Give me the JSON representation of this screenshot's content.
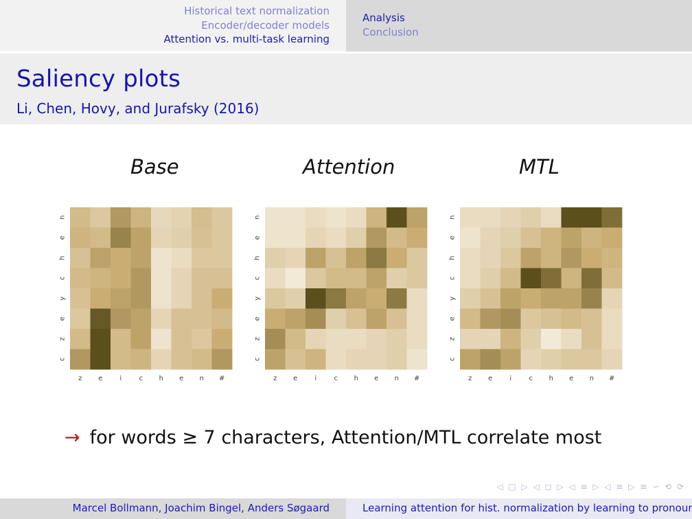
{
  "header": {
    "sections": [
      "Historical text normalization",
      "Encoder/decoder models",
      "Attention vs. multi-task learning"
    ],
    "active_section": 2,
    "subsections": [
      "Analysis",
      "Conclusion"
    ],
    "active_subsection": 0
  },
  "title": "Saliency plots",
  "subtitle": "Li, Chen, Hovy, and Jurafsky (2016)",
  "note": {
    "arrow": "→",
    "text": "for words ≥ 7 characters, Attention/MTL correlate most"
  },
  "navigation": {
    "symbols": "◁ □ ▷ ◁ ◻ ▷ ◁ ≡ ▷ ◁ ≡ ▷ ≡ ∽ ⟲ ⟳"
  },
  "footer": {
    "authors": "Marcel Bollmann, Joachim Bingel, Anders Søgaard",
    "talk_title": "Learning attention for hist. normalization by learning to pronounce"
  },
  "colors": {
    "low": "#f7f0e2",
    "mid": "#c9ad73",
    "high": "#4f4412",
    "title_blue": "#1515b0",
    "arrow_red": "#b22020"
  },
  "chart_data": [
    {
      "type": "heatmap",
      "title": "Base",
      "x": [
        "z",
        "e",
        "i",
        "c",
        "h",
        "e",
        "n",
        "#"
      ],
      "y": [
        "n",
        "e",
        "h",
        "c",
        "y",
        "e",
        "z",
        "c"
      ],
      "values": [
        [
          0.4,
          0.3,
          0.6,
          0.45,
          0.18,
          0.22,
          0.38,
          0.3
        ],
        [
          0.45,
          0.4,
          0.7,
          0.55,
          0.2,
          0.25,
          0.35,
          0.3
        ],
        [
          0.35,
          0.55,
          0.5,
          0.55,
          0.1,
          0.15,
          0.3,
          0.3
        ],
        [
          0.4,
          0.45,
          0.5,
          0.6,
          0.1,
          0.2,
          0.35,
          0.35
        ],
        [
          0.35,
          0.5,
          0.55,
          0.6,
          0.1,
          0.2,
          0.35,
          0.5
        ],
        [
          0.3,
          0.9,
          0.6,
          0.55,
          0.2,
          0.35,
          0.35,
          0.4
        ],
        [
          0.4,
          0.95,
          0.4,
          0.55,
          0.1,
          0.35,
          0.3,
          0.5
        ],
        [
          0.6,
          0.95,
          0.4,
          0.45,
          0.2,
          0.35,
          0.4,
          0.6
        ]
      ]
    },
    {
      "type": "heatmap",
      "title": "Attention",
      "x": [
        "z",
        "e",
        "i",
        "c",
        "h",
        "e",
        "n",
        "#"
      ],
      "y": [
        "n",
        "e",
        "h",
        "c",
        "y",
        "e",
        "z",
        "c"
      ],
      "values": [
        [
          0.1,
          0.1,
          0.15,
          0.1,
          0.15,
          0.45,
          0.95,
          0.55
        ],
        [
          0.1,
          0.1,
          0.2,
          0.15,
          0.25,
          0.6,
          0.4,
          0.5
        ],
        [
          0.25,
          0.2,
          0.55,
          0.35,
          0.55,
          0.75,
          0.5,
          0.3
        ],
        [
          0.15,
          0.05,
          0.3,
          0.4,
          0.4,
          0.55,
          0.25,
          0.3
        ],
        [
          0.3,
          0.25,
          0.95,
          0.75,
          0.55,
          0.5,
          0.75,
          0.15
        ],
        [
          0.5,
          0.55,
          0.65,
          0.25,
          0.35,
          0.55,
          0.35,
          0.15
        ],
        [
          0.65,
          0.4,
          0.2,
          0.15,
          0.15,
          0.2,
          0.25,
          0.15
        ],
        [
          0.55,
          0.35,
          0.45,
          0.15,
          0.2,
          0.2,
          0.25,
          0.1
        ]
      ]
    },
    {
      "type": "heatmap",
      "title": "MTL",
      "x": [
        "z",
        "e",
        "i",
        "c",
        "h",
        "e",
        "n",
        "#"
      ],
      "y": [
        "n",
        "e",
        "h",
        "c",
        "y",
        "e",
        "z",
        "c"
      ],
      "values": [
        [
          0.15,
          0.15,
          0.2,
          0.25,
          0.15,
          0.95,
          0.95,
          0.8
        ],
        [
          0.1,
          0.2,
          0.25,
          0.35,
          0.45,
          0.55,
          0.45,
          0.5
        ],
        [
          0.15,
          0.2,
          0.3,
          0.55,
          0.45,
          0.6,
          0.5,
          0.45
        ],
        [
          0.15,
          0.25,
          0.4,
          0.95,
          0.8,
          0.45,
          0.8,
          0.4
        ],
        [
          0.25,
          0.35,
          0.55,
          0.5,
          0.55,
          0.55,
          0.7,
          0.2
        ],
        [
          0.4,
          0.6,
          0.65,
          0.3,
          0.35,
          0.4,
          0.35,
          0.15
        ],
        [
          0.2,
          0.2,
          0.45,
          0.25,
          0.05,
          0.15,
          0.35,
          0.15
        ],
        [
          0.55,
          0.65,
          0.55,
          0.2,
          0.25,
          0.3,
          0.3,
          0.2
        ]
      ]
    }
  ]
}
